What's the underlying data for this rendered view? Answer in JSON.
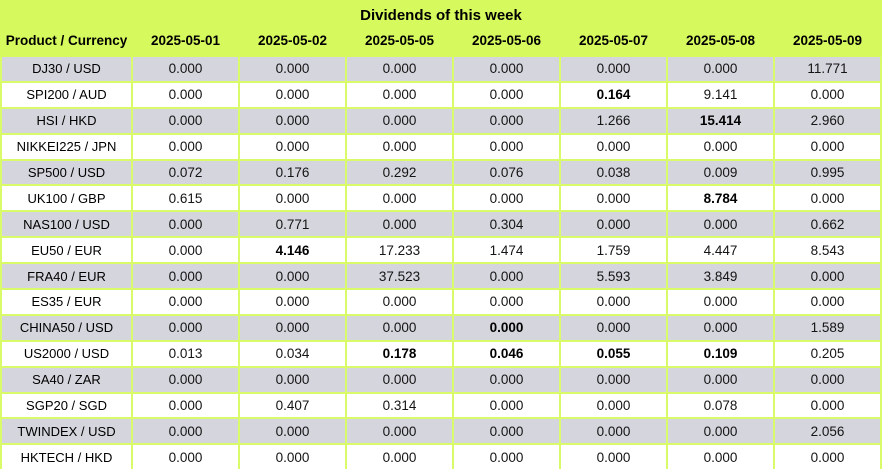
{
  "chart_data": {
    "type": "table",
    "title": "Dividends of this week",
    "columns": [
      "Product / Currency",
      "2025-05-01",
      "2025-05-02",
      "2025-05-05",
      "2025-05-06",
      "2025-05-07",
      "2025-05-08",
      "2025-05-09"
    ],
    "rows": [
      {
        "product": "DJ30 / USD",
        "values": [
          "0.000",
          "0.000",
          "0.000",
          "0.000",
          "0.000",
          "0.000",
          "11.771"
        ],
        "bold_cols": []
      },
      {
        "product": "SPI200 / AUD",
        "values": [
          "0.000",
          "0.000",
          "0.000",
          "0.000",
          "0.164",
          "9.141",
          "0.000"
        ],
        "bold_cols": [
          4
        ]
      },
      {
        "product": "HSI / HKD",
        "values": [
          "0.000",
          "0.000",
          "0.000",
          "0.000",
          "1.266",
          "15.414",
          "2.960"
        ],
        "bold_cols": [
          5
        ]
      },
      {
        "product": "NIKKEI225 / JPN",
        "values": [
          "0.000",
          "0.000",
          "0.000",
          "0.000",
          "0.000",
          "0.000",
          "0.000"
        ],
        "bold_cols": []
      },
      {
        "product": "SP500 / USD",
        "values": [
          "0.072",
          "0.176",
          "0.292",
          "0.076",
          "0.038",
          "0.009",
          "0.995"
        ],
        "bold_cols": []
      },
      {
        "product": "UK100 / GBP",
        "values": [
          "0.615",
          "0.000",
          "0.000",
          "0.000",
          "0.000",
          "8.784",
          "0.000"
        ],
        "bold_cols": [
          5
        ]
      },
      {
        "product": "NAS100 / USD",
        "values": [
          "0.000",
          "0.771",
          "0.000",
          "0.304",
          "0.000",
          "0.000",
          "0.662"
        ],
        "bold_cols": []
      },
      {
        "product": "EU50 / EUR",
        "values": [
          "0.000",
          "4.146",
          "17.233",
          "1.474",
          "1.759",
          "4.447",
          "8.543"
        ],
        "bold_cols": [
          1
        ]
      },
      {
        "product": "FRA40 / EUR",
        "values": [
          "0.000",
          "0.000",
          "37.523",
          "0.000",
          "5.593",
          "3.849",
          "0.000"
        ],
        "bold_cols": []
      },
      {
        "product": "ES35 / EUR",
        "values": [
          "0.000",
          "0.000",
          "0.000",
          "0.000",
          "0.000",
          "0.000",
          "0.000"
        ],
        "bold_cols": []
      },
      {
        "product": "CHINA50 / USD",
        "values": [
          "0.000",
          "0.000",
          "0.000",
          "0.000",
          "0.000",
          "0.000",
          "1.589"
        ],
        "bold_cols": [
          3
        ]
      },
      {
        "product": "US2000 / USD",
        "values": [
          "0.013",
          "0.034",
          "0.178",
          "0.046",
          "0.055",
          "0.109",
          "0.205"
        ],
        "bold_cols": [
          2,
          3,
          4,
          5
        ]
      },
      {
        "product": "SA40 / ZAR",
        "values": [
          "0.000",
          "0.000",
          "0.000",
          "0.000",
          "0.000",
          "0.000",
          "0.000"
        ],
        "bold_cols": []
      },
      {
        "product": "SGP20 / SGD",
        "values": [
          "0.000",
          "0.407",
          "0.314",
          "0.000",
          "0.000",
          "0.078",
          "0.000"
        ],
        "bold_cols": []
      },
      {
        "product": "TWINDEX / USD",
        "values": [
          "0.000",
          "0.000",
          "0.000",
          "0.000",
          "0.000",
          "0.000",
          "2.056"
        ],
        "bold_cols": []
      },
      {
        "product": "HKTECH / HKD",
        "values": [
          "0.000",
          "0.000",
          "0.000",
          "0.000",
          "0.000",
          "0.000",
          "0.000"
        ],
        "bold_cols": []
      }
    ]
  },
  "colors": {
    "header_green": "#d6f95e",
    "border_green": "#d9fa69",
    "row_gray": "#d4d5dd",
    "row_white": "#ffffff",
    "text": "#000000"
  }
}
